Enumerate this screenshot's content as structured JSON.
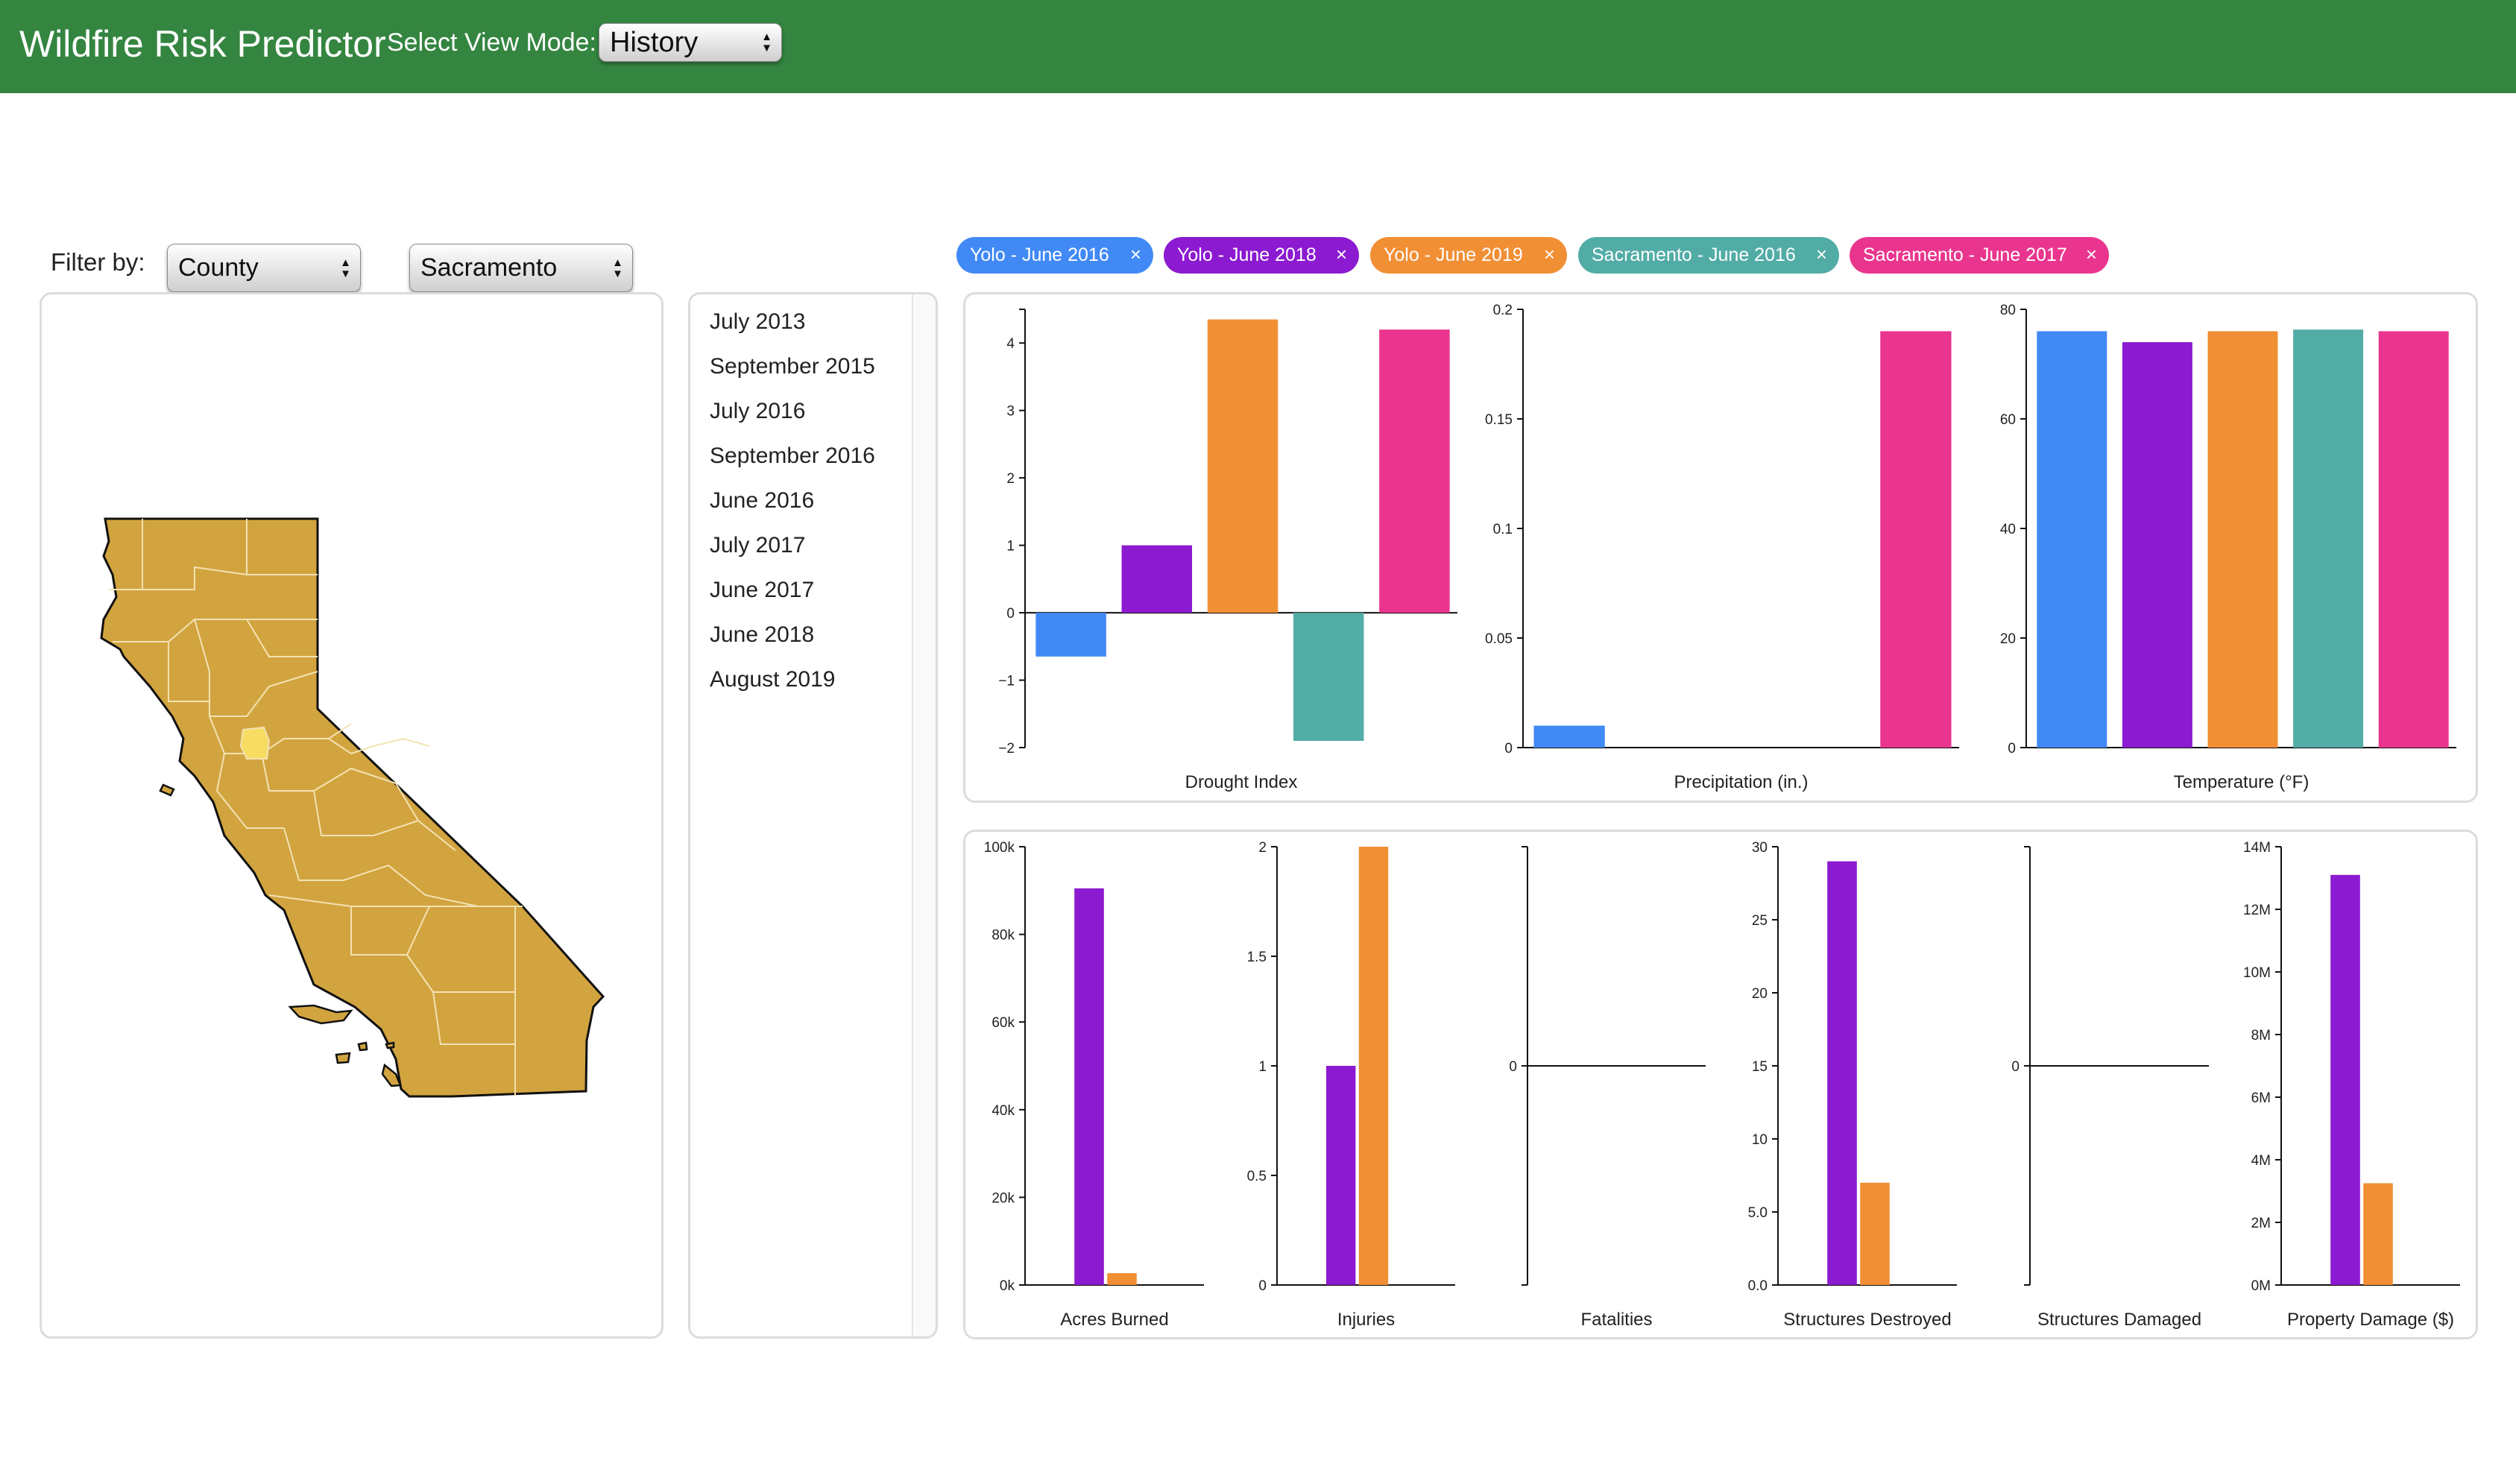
{
  "header": {
    "title": "Wildfire Risk Predictor",
    "view_mode_label": "Select View Mode:",
    "view_mode_value": "History",
    "bg_color": "#348540"
  },
  "filter": {
    "label": "Filter by:",
    "type_value": "County",
    "value_value": "Sacramento"
  },
  "map": {
    "fill_color": "#d2a43f",
    "highlight_color": "#f6dd62",
    "highlighted_county": "Sacramento"
  },
  "dates": [
    "July 2013",
    "September 2015",
    "July 2016",
    "September 2016",
    "June 2016",
    "July 2017",
    "June 2017",
    "June 2018",
    "August 2019"
  ],
  "selections": [
    {
      "label": "Yolo - June 2016",
      "color": "#4189f5"
    },
    {
      "label": "Yolo - June 2018",
      "color": "#8b1ad0"
    },
    {
      "label": "Yolo - June 2019",
      "color": "#f18f35"
    },
    {
      "label": "Sacramento - June 2016",
      "color": "#52aca6"
    },
    {
      "label": "Sacramento - June 2017",
      "color": "#ea358e"
    }
  ],
  "remove_symbol": "×",
  "chart_data": [
    {
      "type": "bar",
      "xlabel": "Drought Index",
      "series_colors_from": "selections",
      "values": [
        -0.65,
        1.0,
        4.35,
        -1.9,
        4.2
      ],
      "ylim": [
        -2,
        4.5
      ],
      "yticks": [
        -2,
        -1,
        0,
        1,
        2,
        3,
        4
      ],
      "ytick_labels": [
        "−2",
        "−1",
        "0",
        "1",
        "2",
        "3",
        "4"
      ]
    },
    {
      "type": "bar",
      "xlabel": "Precipitation (in.)",
      "series_colors_from": "selections",
      "values": [
        0.01,
        0,
        0,
        0,
        0.19
      ],
      "ylim": [
        0,
        0.2
      ],
      "yticks": [
        0,
        0.05,
        0.1,
        0.15,
        0.2
      ],
      "ytick_labels": [
        "0",
        "0.05",
        "0.1",
        "0.15",
        "0.2"
      ]
    },
    {
      "type": "bar",
      "xlabel": "Temperature (°F)",
      "series_colors_from": "selections",
      "values": [
        76,
        74,
        76,
        76.3,
        76
      ],
      "ylim": [
        0,
        80
      ],
      "yticks": [
        0,
        20,
        40,
        60,
        80
      ],
      "ytick_labels": [
        "0",
        "20",
        "40",
        "60",
        "80"
      ]
    },
    {
      "type": "bar",
      "xlabel": "Acres Burned",
      "series_colors_from": "selections",
      "values": [
        0,
        90500,
        2700,
        0,
        0
      ],
      "ylim": [
        0,
        100000
      ],
      "yticks": [
        0,
        20000,
        40000,
        60000,
        80000,
        100000
      ],
      "ytick_labels": [
        "0k",
        "20k",
        "40k",
        "60k",
        "80k",
        "100k"
      ]
    },
    {
      "type": "bar",
      "xlabel": "Injuries",
      "series_colors_from": "selections",
      "values": [
        0,
        1,
        2,
        0,
        0
      ],
      "ylim": [
        0,
        2
      ],
      "yticks": [
        0,
        0.5,
        1,
        1.5,
        2
      ],
      "ytick_labels": [
        "0",
        "0.5",
        "1",
        "1.5",
        "2"
      ]
    },
    {
      "type": "bar",
      "xlabel": "Fatalities",
      "series_colors_from": "selections",
      "values": [
        0,
        0,
        0,
        0,
        0
      ],
      "ylim": [
        -1,
        1
      ],
      "yticks": [
        0
      ],
      "ytick_labels": [
        "0"
      ]
    },
    {
      "type": "bar",
      "xlabel": "Structures Destroyed",
      "series_colors_from": "selections",
      "values": [
        0,
        29,
        7,
        0,
        0
      ],
      "ylim": [
        0,
        30
      ],
      "yticks": [
        0,
        5,
        10,
        15,
        20,
        25,
        30
      ],
      "ytick_labels": [
        "0.0",
        "5.0",
        "10",
        "15",
        "20",
        "25",
        "30"
      ]
    },
    {
      "type": "bar",
      "xlabel": "Structures Damaged",
      "series_colors_from": "selections",
      "values": [
        0,
        0,
        0,
        0,
        0
      ],
      "ylim": [
        -1,
        1
      ],
      "yticks": [
        0
      ],
      "ytick_labels": [
        "0"
      ]
    },
    {
      "type": "bar",
      "xlabel": "Property Damage ($)",
      "series_colors_from": "selections",
      "values": [
        0,
        13100000,
        3250000,
        0,
        0
      ],
      "ylim": [
        0,
        14000000
      ],
      "yticks": [
        0,
        2000000,
        4000000,
        6000000,
        8000000,
        10000000,
        12000000,
        14000000
      ],
      "ytick_labels": [
        "0M",
        "2M",
        "4M",
        "6M",
        "8M",
        "10M",
        "12M",
        "14M"
      ]
    }
  ]
}
